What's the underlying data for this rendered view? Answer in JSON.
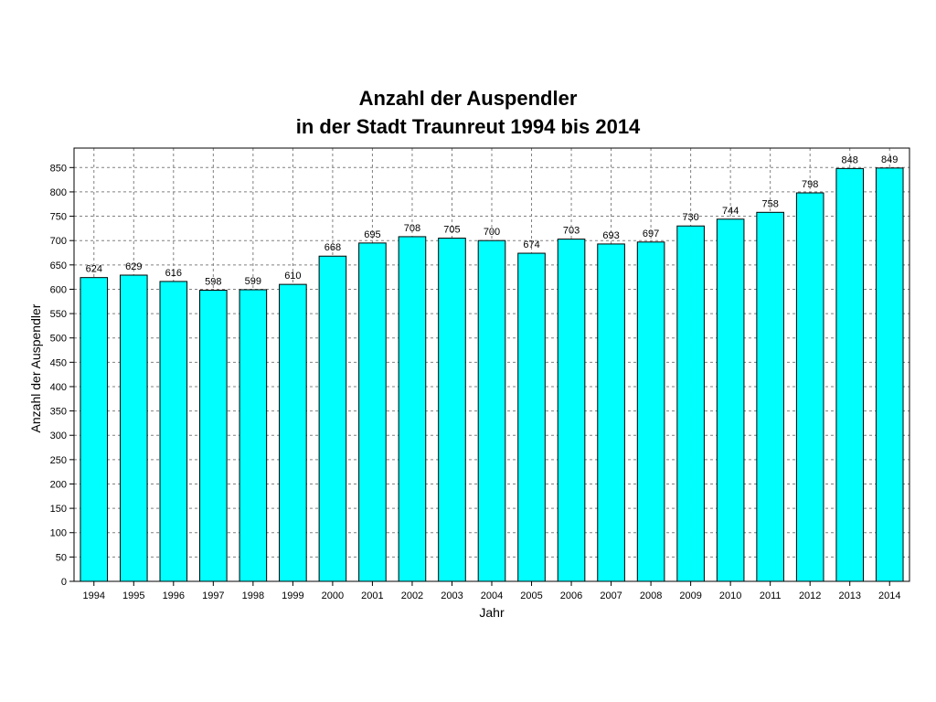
{
  "chart_data": {
    "type": "bar",
    "title_line1": "Anzahl der Auspendler",
    "title_line2": "in der Stadt Traunreut 1994 bis 2014",
    "xlabel": "Jahr",
    "ylabel": "Anzahl der Auspendler",
    "ylim": [
      0,
      890
    ],
    "ytick_step": 50,
    "grid": true,
    "bar_color": "#00ffff",
    "categories": [
      "1994",
      "1995",
      "1996",
      "1997",
      "1998",
      "1999",
      "2000",
      "2001",
      "2002",
      "2003",
      "2004",
      "2005",
      "2006",
      "2007",
      "2008",
      "2009",
      "2010",
      "2011",
      "2012",
      "2013",
      "2014"
    ],
    "values": [
      624,
      629,
      616,
      598,
      599,
      610,
      668,
      695,
      708,
      705,
      700,
      674,
      703,
      693,
      697,
      730,
      744,
      758,
      798,
      848,
      849
    ]
  }
}
